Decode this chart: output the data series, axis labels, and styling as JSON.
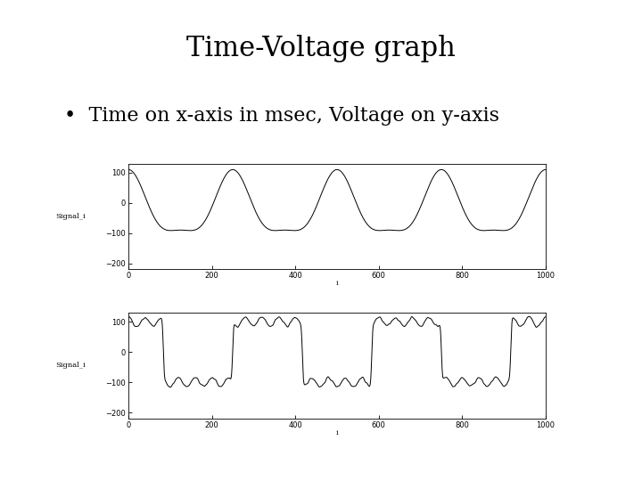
{
  "title": "Time-Voltage graph",
  "bullet_text": "Time on x-axis in msec, Voltage on y-axis",
  "title_fontsize": 22,
  "bullet_fontsize": 16,
  "background_color": "#ffffff",
  "n_points": 1000,
  "xlim": [
    0,
    1000
  ],
  "top_chart": {
    "ylim": [
      -220,
      130
    ],
    "yticks": [
      100,
      0,
      -100,
      -200
    ],
    "ylabel": "Signal_i",
    "xlabel": "i",
    "xticks": [
      0,
      200,
      400,
      600,
      800,
      1000
    ]
  },
  "bottom_chart": {
    "ylim": [
      -220,
      130
    ],
    "yticks": [
      100,
      0,
      -100,
      -200
    ],
    "ylabel": "Signal_i",
    "xlabel": "i",
    "xticks": [
      0,
      200,
      400,
      600,
      800,
      1000
    ]
  }
}
